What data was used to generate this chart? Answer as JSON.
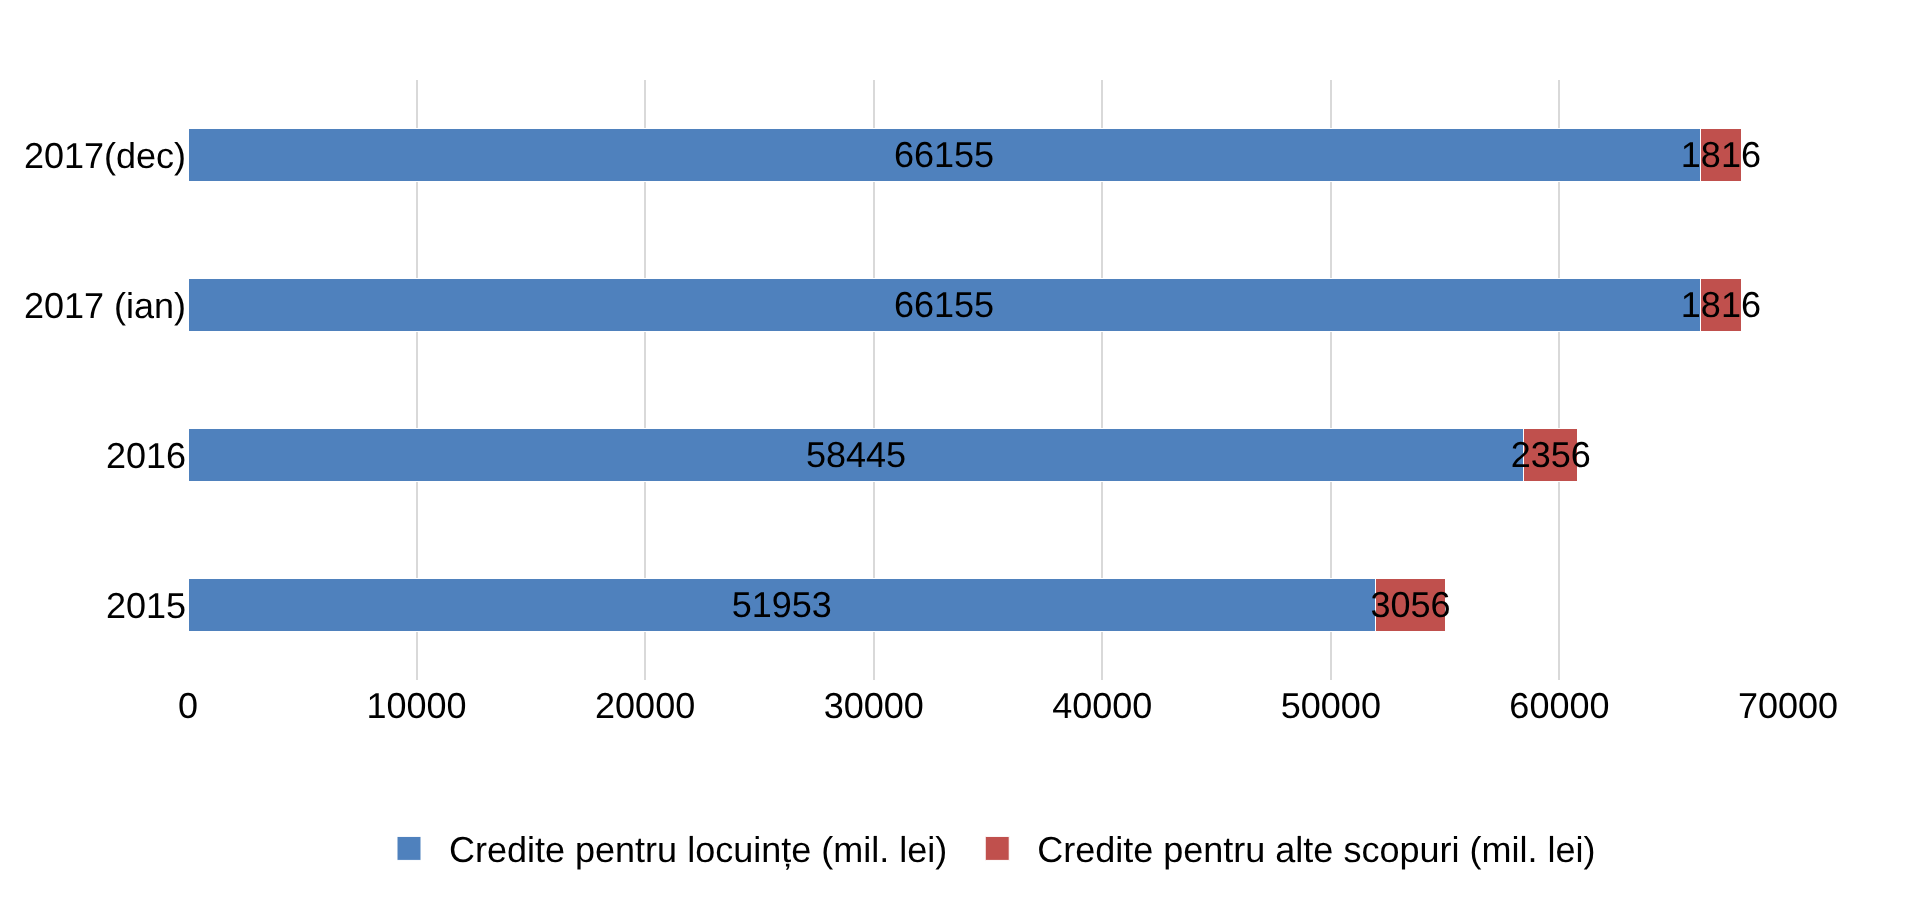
{
  "chart_data": {
    "type": "bar",
    "orientation": "horizontal",
    "stacked": true,
    "categories": [
      "2017(dec)",
      "2017 (ian)",
      "2016",
      "2015"
    ],
    "series": [
      {
        "name": "Credite pentru locuințe (mil. lei)",
        "color": "#4f81bd",
        "values": [
          66155,
          66155,
          58445,
          51953
        ]
      },
      {
        "name": "Credite pentru alte scopuri (mil. lei)",
        "color": "#c0504d",
        "values": [
          1816,
          1816,
          2356,
          3056
        ]
      }
    ],
    "xlim": [
      0,
      70000
    ],
    "xticks": [
      0,
      10000,
      20000,
      30000,
      40000,
      50000,
      60000,
      70000
    ],
    "grid": "x",
    "legend": "bottom",
    "data_labels": true
  }
}
